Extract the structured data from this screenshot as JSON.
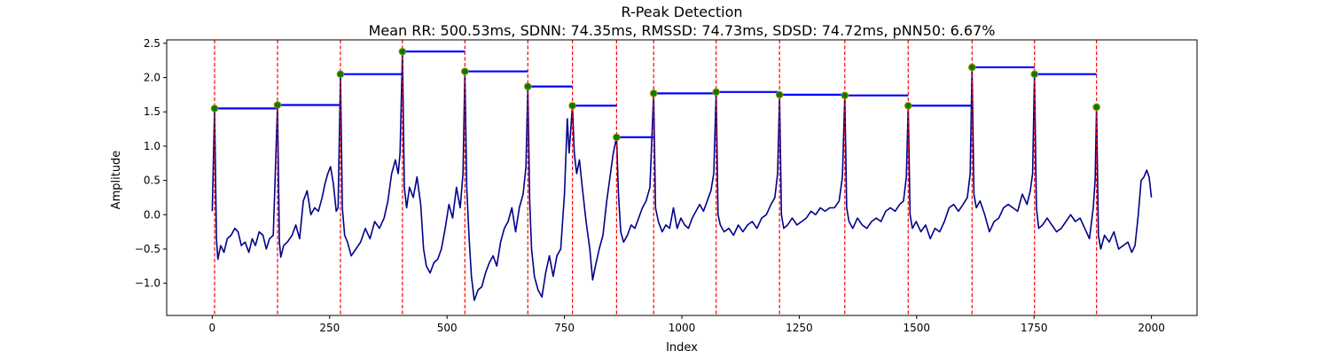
{
  "chart_data": {
    "type": "line",
    "title": "R-Peak Detection",
    "subtitle": "Mean RR: 500.53ms, SDNN: 74.35ms, RMSSD: 74.73ms, SDSD: 74.72ms, pNN50: 6.67%",
    "xlabel": "Index",
    "ylabel": "Amplitude",
    "xlim": [
      -97,
      2097
    ],
    "ylim": [
      -1.47,
      2.55
    ],
    "xticks": [
      0,
      250,
      500,
      750,
      1000,
      1250,
      1500,
      1750,
      2000
    ],
    "yticks": [
      -1.0,
      -0.5,
      0.0,
      0.5,
      1.0,
      1.5,
      2.0,
      2.5
    ],
    "xtick_labels": [
      "0",
      "250",
      "500",
      "750",
      "1000",
      "1250",
      "1500",
      "1750",
      "2000"
    ],
    "ytick_labels": [
      "−1.0",
      "−0.5",
      "0.0",
      "0.5",
      "1.0",
      "1.5",
      "2.0",
      "2.5"
    ],
    "grid": false,
    "colors": {
      "signal": "#00008b",
      "peak_line": "#ff0000",
      "rr_segment": "#0000ff",
      "peak_marker": "#008000",
      "peak_edge": "#b8860b"
    },
    "peaks": [
      {
        "x": 5,
        "y": 1.55
      },
      {
        "x": 139,
        "y": 1.6
      },
      {
        "x": 273,
        "y": 2.05
      },
      {
        "x": 405,
        "y": 2.38
      },
      {
        "x": 538,
        "y": 2.09
      },
      {
        "x": 672,
        "y": 1.87
      },
      {
        "x": 767,
        "y": 1.59
      },
      {
        "x": 861,
        "y": 1.13
      },
      {
        "x": 940,
        "y": 1.77
      },
      {
        "x": 1073,
        "y": 1.79
      },
      {
        "x": 1208,
        "y": 1.75
      },
      {
        "x": 1347,
        "y": 1.74
      },
      {
        "x": 1482,
        "y": 1.59
      },
      {
        "x": 1618,
        "y": 2.15
      },
      {
        "x": 1751,
        "y": 2.05
      },
      {
        "x": 1883,
        "y": 1.57
      }
    ],
    "signal": [
      [
        0,
        0.05
      ],
      [
        5,
        1.55
      ],
      [
        9,
        -0.35
      ],
      [
        12,
        -0.65
      ],
      [
        18,
        -0.45
      ],
      [
        25,
        -0.55
      ],
      [
        32,
        -0.35
      ],
      [
        40,
        -0.3
      ],
      [
        48,
        -0.2
      ],
      [
        55,
        -0.25
      ],
      [
        62,
        -0.45
      ],
      [
        70,
        -0.4
      ],
      [
        78,
        -0.55
      ],
      [
        85,
        -0.35
      ],
      [
        92,
        -0.45
      ],
      [
        100,
        -0.25
      ],
      [
        108,
        -0.3
      ],
      [
        115,
        -0.5
      ],
      [
        122,
        -0.35
      ],
      [
        130,
        -0.3
      ],
      [
        139,
        1.6
      ],
      [
        143,
        -0.4
      ],
      [
        146,
        -0.62
      ],
      [
        152,
        -0.45
      ],
      [
        160,
        -0.4
      ],
      [
        170,
        -0.3
      ],
      [
        178,
        -0.15
      ],
      [
        186,
        -0.35
      ],
      [
        194,
        0.2
      ],
      [
        202,
        0.35
      ],
      [
        210,
        0.0
      ],
      [
        218,
        0.1
      ],
      [
        226,
        0.05
      ],
      [
        234,
        0.25
      ],
      [
        240,
        0.45
      ],
      [
        246,
        0.6
      ],
      [
        252,
        0.7
      ],
      [
        258,
        0.45
      ],
      [
        264,
        0.05
      ],
      [
        268,
        0.1
      ],
      [
        273,
        2.05
      ],
      [
        277,
        0.1
      ],
      [
        282,
        -0.3
      ],
      [
        288,
        -0.4
      ],
      [
        296,
        -0.6
      ],
      [
        306,
        -0.5
      ],
      [
        316,
        -0.4
      ],
      [
        326,
        -0.2
      ],
      [
        336,
        -0.35
      ],
      [
        346,
        -0.1
      ],
      [
        356,
        -0.2
      ],
      [
        366,
        -0.05
      ],
      [
        374,
        0.2
      ],
      [
        382,
        0.6
      ],
      [
        390,
        0.8
      ],
      [
        396,
        0.6
      ],
      [
        400,
        0.9
      ],
      [
        405,
        2.38
      ],
      [
        409,
        0.4
      ],
      [
        414,
        0.1
      ],
      [
        420,
        0.4
      ],
      [
        428,
        0.25
      ],
      [
        436,
        0.55
      ],
      [
        444,
        0.15
      ],
      [
        450,
        -0.5
      ],
      [
        456,
        -0.75
      ],
      [
        464,
        -0.85
      ],
      [
        472,
        -0.7
      ],
      [
        480,
        -0.65
      ],
      [
        488,
        -0.5
      ],
      [
        496,
        -0.2
      ],
      [
        504,
        0.15
      ],
      [
        512,
        -0.05
      ],
      [
        520,
        0.4
      ],
      [
        528,
        0.1
      ],
      [
        534,
        0.6
      ],
      [
        538,
        2.09
      ],
      [
        542,
        0.4
      ],
      [
        547,
        -0.35
      ],
      [
        552,
        -0.9
      ],
      [
        558,
        -1.25
      ],
      [
        566,
        -1.1
      ],
      [
        574,
        -1.05
      ],
      [
        582,
        -0.85
      ],
      [
        590,
        -0.7
      ],
      [
        598,
        -0.6
      ],
      [
        606,
        -0.75
      ],
      [
        614,
        -0.4
      ],
      [
        622,
        -0.2
      ],
      [
        630,
        -0.1
      ],
      [
        638,
        0.1
      ],
      [
        646,
        -0.25
      ],
      [
        654,
        0.1
      ],
      [
        662,
        0.3
      ],
      [
        668,
        0.7
      ],
      [
        672,
        1.87
      ],
      [
        676,
        0.2
      ],
      [
        680,
        -0.5
      ],
      [
        686,
        -0.9
      ],
      [
        694,
        -1.1
      ],
      [
        702,
        -1.2
      ],
      [
        710,
        -0.85
      ],
      [
        718,
        -0.6
      ],
      [
        726,
        -0.9
      ],
      [
        734,
        -0.6
      ],
      [
        742,
        -0.5
      ],
      [
        750,
        0.3
      ],
      [
        756,
        1.4
      ],
      [
        760,
        0.9
      ],
      [
        767,
        1.59
      ],
      [
        771,
        0.9
      ],
      [
        776,
        0.6
      ],
      [
        782,
        0.8
      ],
      [
        788,
        0.4
      ],
      [
        796,
        -0.1
      ],
      [
        804,
        -0.5
      ],
      [
        810,
        -0.95
      ],
      [
        816,
        -0.75
      ],
      [
        824,
        -0.5
      ],
      [
        832,
        -0.3
      ],
      [
        840,
        0.2
      ],
      [
        848,
        0.6
      ],
      [
        854,
        0.9
      ],
      [
        861,
        1.13
      ],
      [
        865,
        0.3
      ],
      [
        870,
        -0.25
      ],
      [
        876,
        -0.4
      ],
      [
        884,
        -0.3
      ],
      [
        892,
        -0.15
      ],
      [
        900,
        -0.2
      ],
      [
        908,
        -0.05
      ],
      [
        916,
        0.1
      ],
      [
        924,
        0.2
      ],
      [
        932,
        0.4
      ],
      [
        940,
        1.77
      ],
      [
        944,
        0.1
      ],
      [
        950,
        -0.1
      ],
      [
        958,
        -0.25
      ],
      [
        966,
        -0.15
      ],
      [
        974,
        -0.2
      ],
      [
        982,
        0.1
      ],
      [
        990,
        -0.2
      ],
      [
        998,
        -0.05
      ],
      [
        1006,
        -0.15
      ],
      [
        1014,
        -0.2
      ],
      [
        1022,
        -0.05
      ],
      [
        1030,
        0.05
      ],
      [
        1038,
        0.15
      ],
      [
        1046,
        0.05
      ],
      [
        1054,
        0.2
      ],
      [
        1062,
        0.35
      ],
      [
        1068,
        0.6
      ],
      [
        1073,
        1.79
      ],
      [
        1077,
        0.0
      ],
      [
        1082,
        -0.15
      ],
      [
        1090,
        -0.25
      ],
      [
        1100,
        -0.2
      ],
      [
        1110,
        -0.3
      ],
      [
        1120,
        -0.15
      ],
      [
        1130,
        -0.25
      ],
      [
        1140,
        -0.15
      ],
      [
        1150,
        -0.1
      ],
      [
        1160,
        -0.2
      ],
      [
        1170,
        -0.05
      ],
      [
        1180,
        0.0
      ],
      [
        1190,
        0.15
      ],
      [
        1198,
        0.25
      ],
      [
        1204,
        0.6
      ],
      [
        1208,
        1.75
      ],
      [
        1212,
        0.0
      ],
      [
        1217,
        -0.2
      ],
      [
        1225,
        -0.15
      ],
      [
        1235,
        -0.05
      ],
      [
        1245,
        -0.15
      ],
      [
        1255,
        -0.1
      ],
      [
        1265,
        -0.05
      ],
      [
        1275,
        0.05
      ],
      [
        1285,
        0.0
      ],
      [
        1295,
        0.1
      ],
      [
        1305,
        0.05
      ],
      [
        1315,
        0.1
      ],
      [
        1325,
        0.1
      ],
      [
        1335,
        0.2
      ],
      [
        1342,
        0.55
      ],
      [
        1347,
        1.74
      ],
      [
        1351,
        0.1
      ],
      [
        1356,
        -0.1
      ],
      [
        1364,
        -0.2
      ],
      [
        1374,
        -0.05
      ],
      [
        1384,
        -0.15
      ],
      [
        1394,
        -0.2
      ],
      [
        1404,
        -0.1
      ],
      [
        1414,
        -0.05
      ],
      [
        1424,
        -0.1
      ],
      [
        1434,
        0.05
      ],
      [
        1444,
        0.1
      ],
      [
        1454,
        0.05
      ],
      [
        1464,
        0.15
      ],
      [
        1472,
        0.2
      ],
      [
        1478,
        0.55
      ],
      [
        1482,
        1.59
      ],
      [
        1486,
        0.0
      ],
      [
        1491,
        -0.2
      ],
      [
        1499,
        -0.1
      ],
      [
        1509,
        -0.25
      ],
      [
        1519,
        -0.15
      ],
      [
        1529,
        -0.35
      ],
      [
        1539,
        -0.2
      ],
      [
        1549,
        -0.25
      ],
      [
        1559,
        -0.1
      ],
      [
        1569,
        0.1
      ],
      [
        1579,
        0.15
      ],
      [
        1589,
        0.05
      ],
      [
        1599,
        0.15
      ],
      [
        1608,
        0.25
      ],
      [
        1614,
        0.6
      ],
      [
        1618,
        2.15
      ],
      [
        1622,
        0.3
      ],
      [
        1627,
        0.1
      ],
      [
        1635,
        0.2
      ],
      [
        1645,
        0.0
      ],
      [
        1655,
        -0.25
      ],
      [
        1665,
        -0.1
      ],
      [
        1675,
        -0.05
      ],
      [
        1685,
        0.1
      ],
      [
        1695,
        0.15
      ],
      [
        1705,
        0.1
      ],
      [
        1715,
        0.05
      ],
      [
        1725,
        0.3
      ],
      [
        1735,
        0.15
      ],
      [
        1742,
        0.35
      ],
      [
        1747,
        0.6
      ],
      [
        1751,
        2.05
      ],
      [
        1755,
        0.1
      ],
      [
        1760,
        -0.2
      ],
      [
        1768,
        -0.15
      ],
      [
        1778,
        -0.05
      ],
      [
        1788,
        -0.15
      ],
      [
        1798,
        -0.25
      ],
      [
        1808,
        -0.2
      ],
      [
        1818,
        -0.1
      ],
      [
        1828,
        0.0
      ],
      [
        1838,
        -0.1
      ],
      [
        1848,
        -0.05
      ],
      [
        1858,
        -0.2
      ],
      [
        1868,
        -0.35
      ],
      [
        1876,
        0.1
      ],
      [
        1880,
        0.5
      ],
      [
        1883,
        1.57
      ],
      [
        1887,
        -0.3
      ],
      [
        1892,
        -0.5
      ],
      [
        1900,
        -0.3
      ],
      [
        1910,
        -0.4
      ],
      [
        1920,
        -0.25
      ],
      [
        1930,
        -0.5
      ],
      [
        1940,
        -0.45
      ],
      [
        1950,
        -0.4
      ],
      [
        1958,
        -0.55
      ],
      [
        1965,
        -0.45
      ],
      [
        1972,
        0.0
      ],
      [
        1978,
        0.5
      ],
      [
        1984,
        0.55
      ],
      [
        1990,
        0.65
      ],
      [
        1995,
        0.55
      ],
      [
        2000,
        0.25
      ]
    ]
  }
}
